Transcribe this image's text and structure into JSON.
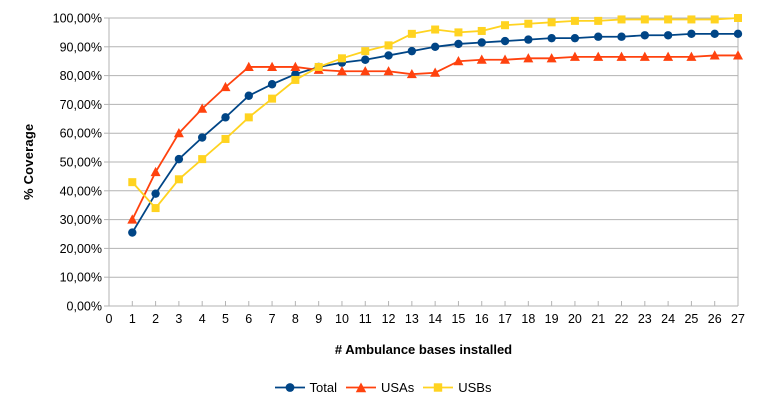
{
  "chart_data": {
    "type": "line",
    "title": "",
    "xlabel": "# Ambulance bases installed",
    "ylabel": "% Coverage",
    "xlim": [
      0,
      27
    ],
    "ylim": [
      0,
      100
    ],
    "grid": "horizontal",
    "legend_position": "bottom",
    "x": [
      1,
      2,
      3,
      4,
      5,
      6,
      7,
      8,
      9,
      10,
      11,
      12,
      13,
      14,
      15,
      16,
      17,
      18,
      19,
      20,
      21,
      22,
      23,
      24,
      25,
      26,
      27
    ],
    "x_axis_ticks": [
      0,
      1,
      2,
      3,
      4,
      5,
      6,
      7,
      8,
      9,
      10,
      11,
      12,
      13,
      14,
      15,
      16,
      17,
      18,
      19,
      20,
      21,
      22,
      23,
      24,
      25,
      26,
      27
    ],
    "y_ticks": [
      {
        "value": 0,
        "label": "0,00%"
      },
      {
        "value": 10,
        "label": "10,00%"
      },
      {
        "value": 20,
        "label": "20,00%"
      },
      {
        "value": 30,
        "label": "30,00%"
      },
      {
        "value": 40,
        "label": "40,00%"
      },
      {
        "value": 50,
        "label": "50,00%"
      },
      {
        "value": 60,
        "label": "60,00%"
      },
      {
        "value": 70,
        "label": "70,00%"
      },
      {
        "value": 80,
        "label": "80,00%"
      },
      {
        "value": 90,
        "label": "90,00%"
      },
      {
        "value": 100,
        "label": "100,00%"
      }
    ],
    "series": [
      {
        "name": "Total",
        "marker": "circle",
        "color": "#004586",
        "values": [
          25.5,
          39,
          51,
          58.5,
          65.5,
          73,
          77,
          80.5,
          83,
          84.5,
          85.5,
          87,
          88.5,
          90,
          91,
          91.5,
          92,
          92.5,
          93,
          93,
          93.5,
          93.5,
          94,
          94,
          94.5,
          94.5,
          94.5
        ]
      },
      {
        "name": "USAs",
        "marker": "triangle",
        "color": "#FF420E",
        "values": [
          30,
          46.5,
          60,
          68.5,
          76,
          83,
          83,
          83,
          82,
          81.5,
          81.5,
          81.5,
          80.5,
          81,
          85,
          85.5,
          85.5,
          86,
          86,
          86.5,
          86.5,
          86.5,
          86.5,
          86.5,
          86.5,
          87,
          87
        ]
      },
      {
        "name": "USBs",
        "marker": "square",
        "color": "#FFD320",
        "values": [
          43,
          34,
          44,
          51,
          58,
          65.5,
          72,
          78.5,
          83,
          86,
          88.5,
          90.5,
          94.5,
          96,
          95,
          95.5,
          97.5,
          98,
          98.5,
          99,
          99,
          99.5,
          99.5,
          99.5,
          99.5,
          99.5,
          100
        ]
      }
    ],
    "colors": {
      "grid": "#b3b3b3",
      "axis": "#b3b3b3",
      "text": "#000000",
      "background": "#ffffff"
    }
  }
}
